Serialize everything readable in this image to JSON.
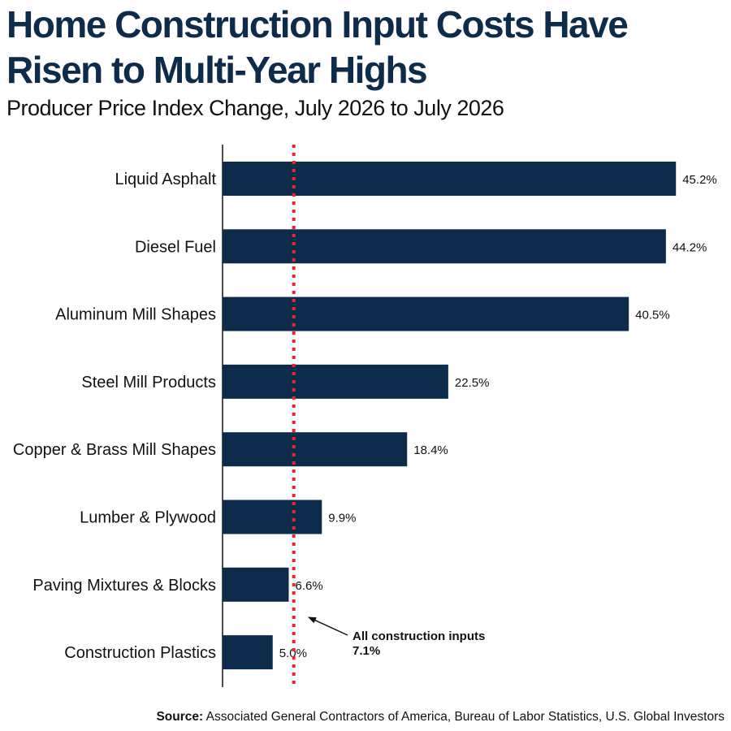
{
  "chart_data": {
    "type": "bar",
    "orientation": "horizontal",
    "title": "Home Construction Input Costs Have Risen to Multi-Year Highs",
    "subtitle": "Producer Price Index Change, July 2026 to July 2026",
    "categories": [
      "Liquid Asphalt",
      "Diesel Fuel",
      "Aluminum Mill Shapes",
      "Steel Mill Products",
      "Copper & Brass Mill Shapes",
      "Lumber & Plywood",
      "Paving Mixtures & Blocks",
      "Construction Plastics"
    ],
    "values": [
      45.2,
      44.2,
      40.5,
      22.5,
      18.4,
      9.9,
      6.6,
      5.0
    ],
    "value_labels": [
      "45.2%",
      "44.2%",
      "40.5%",
      "22.5%",
      "18.4%",
      "9.9%",
      "6.6%",
      "5.0%"
    ],
    "xlim": [
      0,
      46
    ],
    "grid": false,
    "bar_color": "#0d2b4a",
    "reference_line": {
      "value": 7.1,
      "color": "#e8262b",
      "style": "dotted",
      "label_line1": "All construction inputs",
      "label_line2": "7.1%"
    }
  },
  "source": {
    "prefix": "Source:",
    "text": "Associated General Contractors of America, Bureau of Labor Statistics, U.S. Global Investors"
  }
}
